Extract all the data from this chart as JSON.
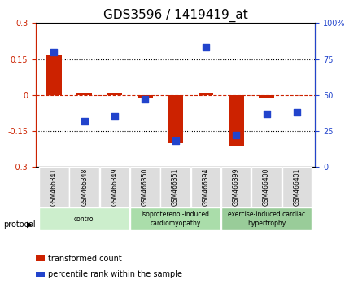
{
  "title": "GDS3596 / 1419419_at",
  "samples": [
    "GSM466341",
    "GSM466348",
    "GSM466349",
    "GSM466350",
    "GSM466351",
    "GSM466394",
    "GSM466399",
    "GSM466400",
    "GSM466401"
  ],
  "transformed_count": [
    0.17,
    0.01,
    0.01,
    -0.01,
    -0.2,
    0.01,
    -0.21,
    -0.01,
    0.0
  ],
  "percentile_rank": [
    80,
    32,
    35,
    47,
    18,
    83,
    22,
    37,
    38
  ],
  "bar_color": "#cc2200",
  "dot_color": "#2244cc",
  "ylim_left": [
    -0.3,
    0.3
  ],
  "ylim_right": [
    0,
    100
  ],
  "yticks_left": [
    -0.3,
    -0.15,
    0.0,
    0.15,
    0.3
  ],
  "yticks_right": [
    0,
    25,
    50,
    75,
    100
  ],
  "ytick_labels_left": [
    "-0.3",
    "-0.15",
    "0",
    "0.15",
    "0.3"
  ],
  "ytick_labels_right": [
    "0",
    "25",
    "50",
    "75",
    "100%"
  ],
  "hlines": [
    0.15,
    0.0,
    -0.15
  ],
  "hline_styles": [
    "dotted",
    "dashed",
    "dotted"
  ],
  "protocol_groups": [
    {
      "label": "control",
      "start": 0,
      "end": 2,
      "color": "#cceecc"
    },
    {
      "label": "isoproterenol-induced\ncardiomyopathy",
      "start": 3,
      "end": 5,
      "color": "#aaddaa"
    },
    {
      "label": "exercise-induced cardiac\nhypertrophy",
      "start": 6,
      "end": 8,
      "color": "#99cc99"
    }
  ],
  "protocol_label": "protocol",
  "legend_items": [
    {
      "color": "#cc2200",
      "label": "transformed count"
    },
    {
      "color": "#2244cc",
      "label": "percentile rank within the sample"
    }
  ],
  "bar_width": 0.5,
  "dot_size": 40,
  "title_fontsize": 11,
  "tick_fontsize": 7,
  "label_fontsize": 8
}
